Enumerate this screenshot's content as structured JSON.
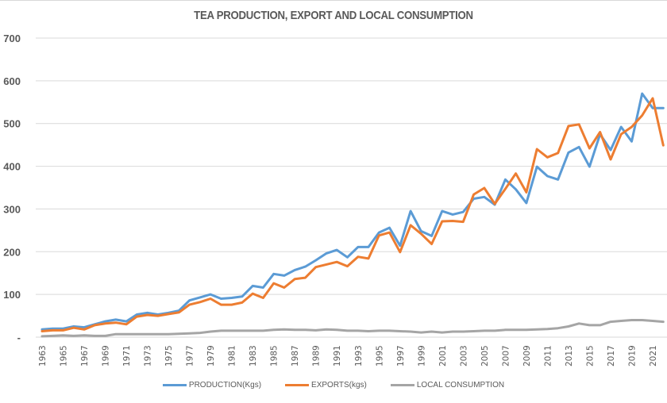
{
  "chart_data": {
    "type": "line",
    "title": "TEA PRODUCTION, EXPORT AND LOCAL CONSUMPTION",
    "xlabel": "",
    "ylabel": "",
    "ylim": [
      0,
      700
    ],
    "yticks": [
      "-",
      "100",
      "200",
      "300",
      "400",
      "500",
      "600",
      "700"
    ],
    "ytick_values": [
      0,
      100,
      200,
      300,
      400,
      500,
      600,
      700
    ],
    "grid": true,
    "legend_position": "bottom",
    "x": [
      1963,
      1964,
      1965,
      1966,
      1967,
      1968,
      1969,
      1970,
      1971,
      1972,
      1973,
      1974,
      1975,
      1976,
      1977,
      1978,
      1979,
      1980,
      1981,
      1982,
      1983,
      1984,
      1985,
      1986,
      1987,
      1988,
      1989,
      1990,
      1991,
      1992,
      1993,
      1994,
      1995,
      1996,
      1997,
      1998,
      1999,
      2000,
      2001,
      2002,
      2003,
      2004,
      2005,
      2006,
      2007,
      2008,
      2009,
      2010,
      2011,
      2012,
      2013,
      2014,
      2015,
      2016,
      2017,
      2018,
      2019,
      2020,
      2021,
      2022
    ],
    "xtick_labels": [
      "1963",
      "1965",
      "1967",
      "1969",
      "1971",
      "1973",
      "1975",
      "1977",
      "1979",
      "1981",
      "1983",
      "1985",
      "1987",
      "1989",
      "1991",
      "1993",
      "1995",
      "1997",
      "1999",
      "2001",
      "2003",
      "2005",
      "2007",
      "2009",
      "2011",
      "2013",
      "2015",
      "2017",
      "2019",
      "2021"
    ],
    "series": [
      {
        "name": "PRODUCTION(Kgs)",
        "color": "#5B9BD5",
        "values": [
          18,
          20,
          20,
          25,
          23,
          30,
          37,
          41,
          37,
          53,
          57,
          53,
          57,
          62,
          86,
          93,
          100,
          90,
          92,
          95,
          120,
          116,
          148,
          144,
          157,
          165,
          180,
          196,
          204,
          187,
          211,
          211,
          245,
          256,
          214,
          295,
          248,
          237,
          295,
          287,
          293,
          324,
          328,
          310,
          369,
          346,
          314,
          399,
          377,
          369,
          432,
          445,
          399,
          475,
          438,
          492,
          458,
          570,
          536,
          536
        ]
      },
      {
        "name": "EXPORTS(kgs)",
        "color": "#ED7D31",
        "values": [
          14,
          16,
          16,
          22,
          18,
          28,
          32,
          34,
          30,
          48,
          52,
          50,
          54,
          58,
          76,
          82,
          90,
          76,
          76,
          81,
          102,
          92,
          126,
          116,
          136,
          139,
          164,
          170,
          176,
          166,
          188,
          184,
          238,
          245,
          199,
          262,
          242,
          218,
          271,
          272,
          270,
          334,
          349,
          312,
          347,
          383,
          339,
          440,
          421,
          431,
          494,
          498,
          442,
          480,
          416,
          475,
          492,
          519,
          559,
          449
        ]
      },
      {
        "name": "LOCAL CONSUMPTION",
        "color": "#A5A5A5",
        "values": [
          2,
          3,
          4,
          3,
          4,
          3,
          3,
          7,
          7,
          7,
          7,
          7,
          7,
          8,
          9,
          10,
          13,
          15,
          15,
          15,
          15,
          15,
          17,
          18,
          17,
          17,
          16,
          18,
          17,
          15,
          15,
          14,
          15,
          15,
          14,
          13,
          11,
          13,
          11,
          13,
          13,
          14,
          15,
          15,
          17,
          17,
          17,
          18,
          19,
          21,
          25,
          32,
          28,
          28,
          36,
          38,
          40,
          40,
          38,
          36
        ]
      }
    ]
  },
  "legend": {
    "items": [
      {
        "label": "PRODUCTION(Kgs)",
        "color": "#5B9BD5"
      },
      {
        "label": "EXPORTS(kgs)",
        "color": "#ED7D31"
      },
      {
        "label": "LOCAL CONSUMPTION",
        "color": "#A5A5A5"
      }
    ]
  }
}
